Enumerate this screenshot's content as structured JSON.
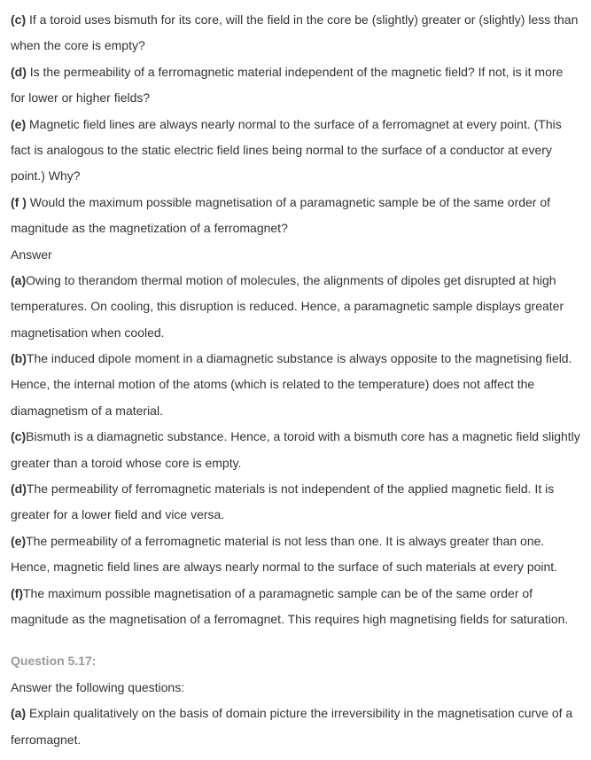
{
  "items": {
    "c_label": "(c) ",
    "c_text": "If a toroid uses bismuth for its core, will the field in the core be (slightly) greater or (slightly) less than when the core is empty?",
    "d_label": "(d) ",
    "d_text": "Is the permeability of a ferromagnetic material independent of the magnetic field? If not, is it more for lower or higher fields?",
    "e_label": "(e) ",
    "e_text": "Magnetic field lines are always nearly normal to the surface of a ferromagnet at every point. (This fact is analogous to the static electric field lines being normal to the surface of a conductor at every point.) Why?",
    "f_label": "(f ) ",
    "f_text": "Would the maximum possible magnetisation of a paramagnetic sample be of the same order of magnitude as the magnetization of a ferromagnet?",
    "answer_label": "Answer",
    "a_ans_label": " (a)",
    "a_ans_text": "Owing to therandom thermal motion of molecules, the alignments of dipoles get disrupted at high temperatures. On cooling, this disruption is reduced. Hence, a paramagnetic sample displays greater magnetisation when cooled.",
    "b_ans_label": "(b)",
    "b_ans_text": "The induced dipole moment in a diamagnetic substance is always opposite to the magnetising field. Hence, the internal motion of the atoms (which is related to the temperature) does not affect the diamagnetism of a material.",
    "c_ans_label": "(c)",
    "c_ans_text": "Bismuth is a diamagnetic substance. Hence, a toroid with a bismuth core has a magnetic field slightly greater than a toroid whose core is empty.",
    "d_ans_label": "(d)",
    "d_ans_text": "The permeability of ferromagnetic materials is not independent of the applied magnetic field. It is greater for a lower field and vice versa.",
    "e_ans_label": "(e)",
    "e_ans_text": "The permeability of a ferromagnetic material is not less than one. It is always greater than one. Hence, magnetic field lines are always nearly normal to the surface of such materials at every point.",
    "f_ans_label": "(f)",
    "f_ans_text": "The maximum possible magnetisation of a paramagnetic sample can be of the same order of magnitude as the magnetisation of a ferromagnet. This requires high magnetising fields for saturation.",
    "q17_heading": "Question 5.17:",
    "q17_intro": "Answer the following questions:",
    "q17_a_label": "(a) ",
    "q17_a_text": "Explain qualitatively on the basis of domain picture the irreversibility in the magnetisation curve of a ferromagnet."
  }
}
